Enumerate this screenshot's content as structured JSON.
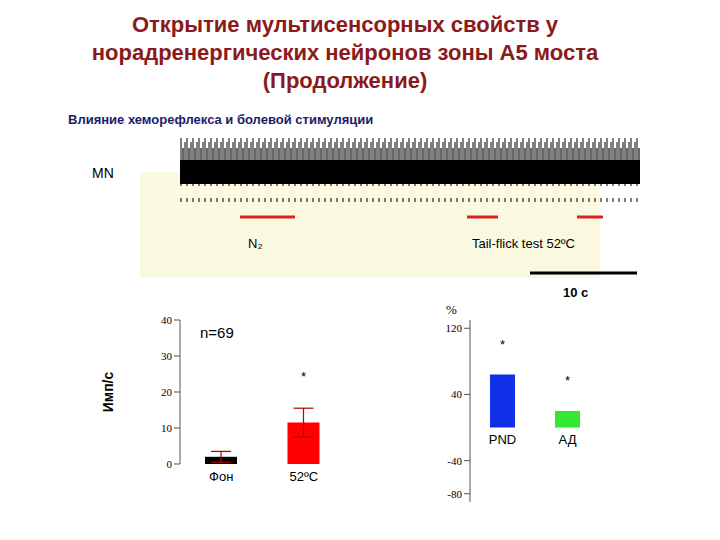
{
  "title": [
    "Открытие мультисенсорных свойств у",
    "норадренергических нейронов зоны А5 моста",
    "(Продолжение)"
  ],
  "subtitle": "Влияние хеморефлекса и болевой стимуляции",
  "trace": {
    "label": "MN",
    "stimuli": [
      "N₂",
      "Tail-flick test 52ºC"
    ],
    "scale_bar": "10 с"
  },
  "chart_data": [
    {
      "type": "bar",
      "categories": [
        "Фон",
        "52ºC"
      ],
      "values": [
        2,
        11.5
      ],
      "errors": [
        1.5,
        4
      ],
      "colors": [
        "#000000",
        "#ff0000"
      ],
      "ylabel": "Имп/с",
      "ylim": [
        0,
        40
      ],
      "yticks": [
        0,
        10,
        20,
        30,
        40
      ],
      "annotations": [
        {
          "text": "n=69"
        },
        {
          "category": "52ºC",
          "text": "*"
        }
      ]
    },
    {
      "type": "bar",
      "categories": [
        "PND",
        "АД"
      ],
      "values": [
        64,
        20
      ],
      "colors": [
        "#1030e8",
        "#33e833"
      ],
      "ylabel": "%",
      "ylim": [
        -90,
        130
      ],
      "yticks": [
        -80,
        -40,
        40,
        120
      ],
      "annotations": [
        {
          "category": "PND",
          "text": "*"
        },
        {
          "category": "АД",
          "text": "*"
        }
      ]
    }
  ]
}
